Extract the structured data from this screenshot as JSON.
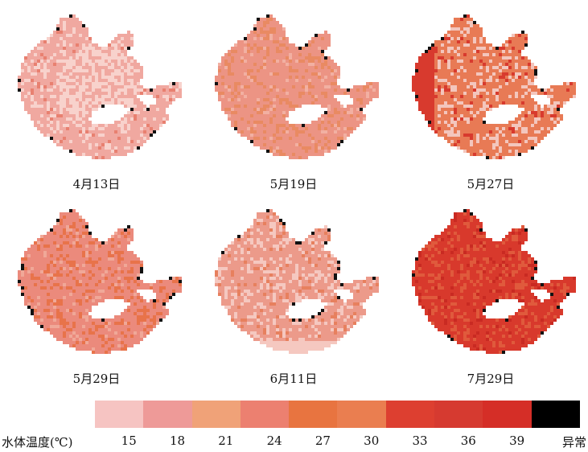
{
  "panels": [
    {
      "date": "4月13日",
      "base": "#f0a8a0",
      "patch": "#f8d2cc",
      "accent": "#e88070",
      "edge": "#111111"
    },
    {
      "date": "5月19日",
      "base": "#ec9484",
      "patch": "#e98a62",
      "accent": "#f2b0a2",
      "edge": "#111111"
    },
    {
      "date": "5月27日",
      "base": "#e87a55",
      "patch": "#f3c6bd",
      "accent": "#d83a2e",
      "edge": "#111111"
    },
    {
      "date": "5月29日",
      "base": "#eb8a7c",
      "patch": "#e8734a",
      "accent": "#f0a898",
      "edge": "#111111"
    },
    {
      "date": "6月11日",
      "base": "#ec9a8a",
      "patch": "#f5c8c0",
      "accent": "#e7805e",
      "edge": "#111111"
    },
    {
      "date": "7月29日",
      "base": "#d8392c",
      "patch": "#e05a3c",
      "accent": "#c92a22",
      "edge": "#111111"
    }
  ],
  "legend": {
    "title": "水体温度(℃)",
    "ticks": [
      "15",
      "18",
      "21",
      "24",
      "27",
      "30",
      "33",
      "36",
      "39"
    ],
    "anomaly_label": "异常",
    "colors": [
      "#f6c4c2",
      "#ee9a98",
      "#f0a278",
      "#ec8070",
      "#e87440",
      "#ea7e50",
      "#dd3f30",
      "#d63a30",
      "#d52e27",
      "#000000"
    ]
  }
}
